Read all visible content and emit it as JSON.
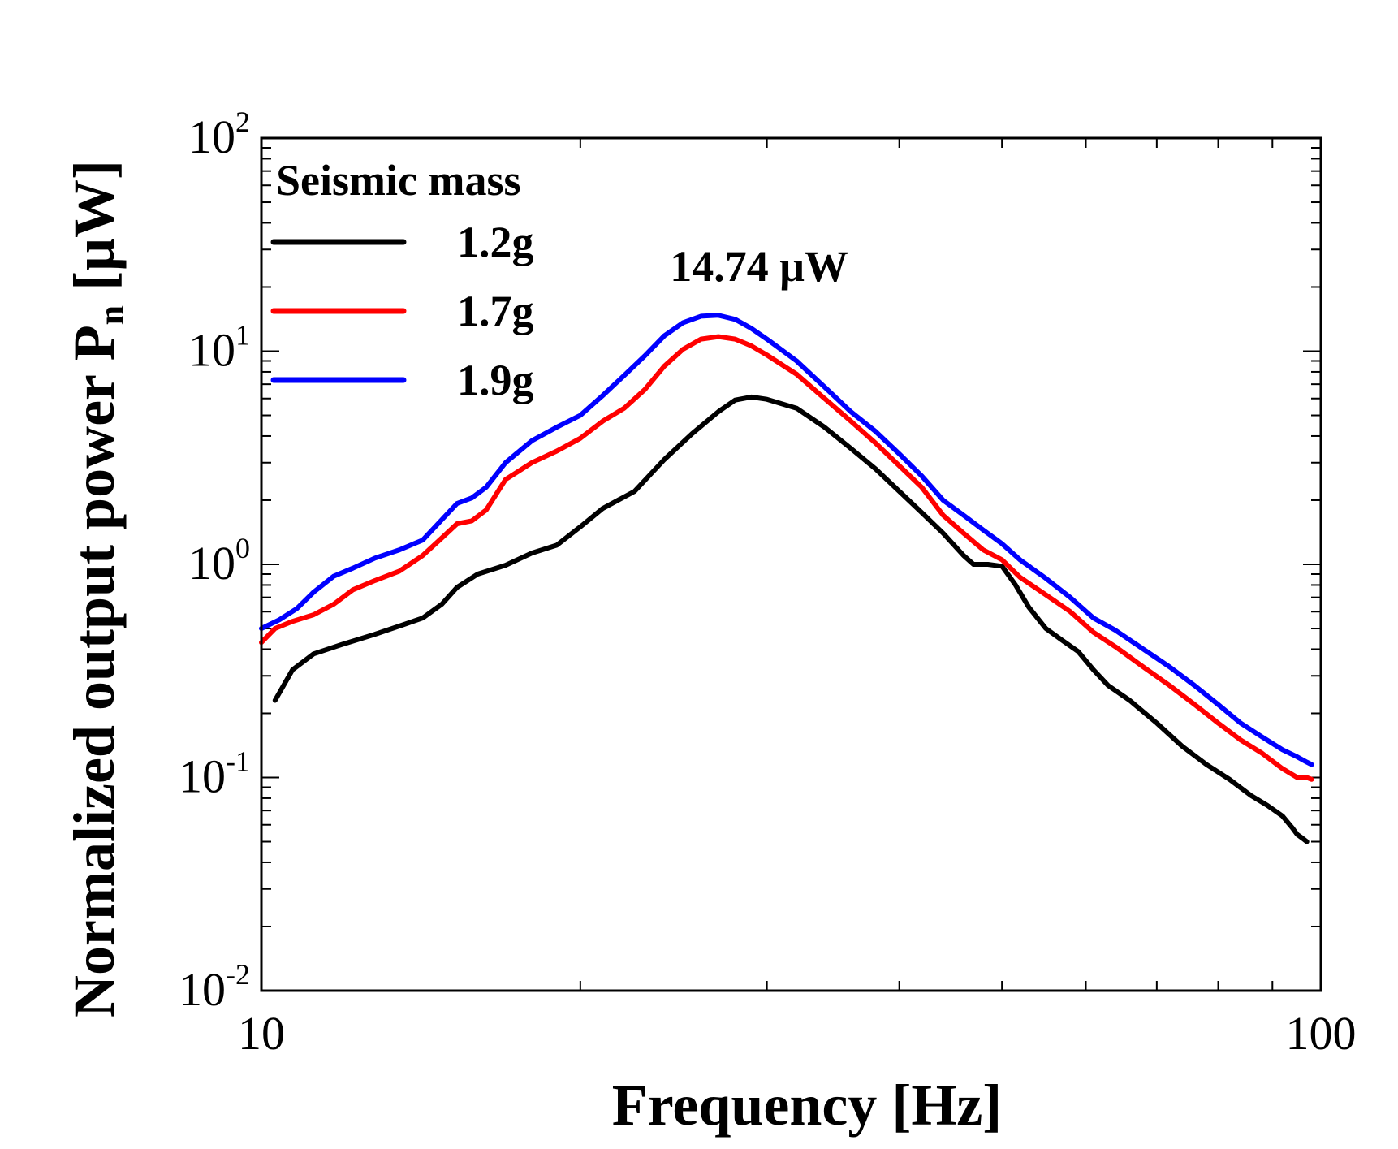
{
  "chart_data": {
    "type": "line",
    "xscale": "log",
    "yscale": "log",
    "xlim": [
      10,
      100
    ],
    "ylim": [
      0.01,
      100
    ],
    "xlabel": "Frequency [Hz]",
    "ylabel_main": "Normalized output power P",
    "ylabel_sub": "n",
    "ylabel_unit": " [μW]",
    "x_ticks": [
      {
        "value": 10,
        "label": "10"
      },
      {
        "value": 100,
        "label": "100"
      }
    ],
    "y_ticks": [
      {
        "value": 0.01,
        "base": "10",
        "exp": "-2"
      },
      {
        "value": 0.1,
        "base": "10",
        "exp": "-1"
      },
      {
        "value": 1,
        "base": "10",
        "exp": "0"
      },
      {
        "value": 10,
        "base": "10",
        "exp": "1"
      },
      {
        "value": 100,
        "base": "10",
        "exp": "2"
      }
    ],
    "legend": {
      "title": "Seismic mass",
      "placement": "top-left"
    },
    "annotation": {
      "text": "14.74 μW",
      "x": 29.5,
      "y": 25
    },
    "series": [
      {
        "name": "1.2g",
        "color": "#000000",
        "x": [
          10.3,
          10.7,
          11.2,
          11.9,
          12.8,
          13.6,
          14.2,
          14.8,
          15.3,
          16.0,
          17.0,
          18.0,
          19.0,
          20.0,
          21.0,
          22.5,
          24.0,
          25.5,
          27.0,
          28.0,
          29.0,
          30.0,
          32.0,
          34.0,
          36.0,
          38.0,
          40.0,
          42.0,
          44.0,
          46.0,
          47.0,
          48.5,
          50.0,
          51.5,
          53.0,
          55.0,
          57.0,
          59.0,
          61.0,
          63.0,
          66.0,
          70.0,
          74.0,
          78.0,
          82.0,
          86.0,
          89.0,
          92.0,
          94.0,
          95.0,
          96.0,
          97.0
        ],
        "y": [
          0.23,
          0.32,
          0.38,
          0.42,
          0.47,
          0.52,
          0.56,
          0.65,
          0.78,
          0.9,
          0.99,
          1.13,
          1.23,
          1.5,
          1.83,
          2.2,
          3.1,
          4.1,
          5.2,
          5.9,
          6.1,
          5.95,
          5.4,
          4.4,
          3.5,
          2.8,
          2.2,
          1.75,
          1.4,
          1.1,
          1.0,
          1.0,
          0.98,
          0.8,
          0.63,
          0.5,
          0.44,
          0.39,
          0.32,
          0.27,
          0.23,
          0.18,
          0.14,
          0.115,
          0.098,
          0.082,
          0.074,
          0.066,
          0.058,
          0.054,
          0.052,
          0.05
        ]
      },
      {
        "name": "1.7g",
        "color": "#ff0000",
        "x": [
          10.0,
          10.3,
          10.7,
          11.2,
          11.7,
          12.2,
          12.8,
          13.5,
          14.2,
          14.8,
          15.3,
          15.8,
          16.3,
          17.0,
          18.0,
          19.0,
          20.0,
          21.0,
          22.0,
          23.0,
          24.0,
          25.0,
          26.0,
          27.0,
          28.0,
          29.0,
          30.0,
          32.0,
          34.0,
          36.0,
          38.0,
          40.0,
          42.0,
          44.0,
          46.0,
          48.0,
          50.0,
          52.0,
          55.0,
          58.0,
          61.0,
          64.0,
          68.0,
          72.0,
          76.0,
          80.0,
          84.0,
          88.0,
          92.0,
          95.0,
          97.0,
          98.0
        ],
        "y": [
          0.43,
          0.5,
          0.54,
          0.58,
          0.65,
          0.76,
          0.84,
          0.93,
          1.1,
          1.33,
          1.55,
          1.6,
          1.8,
          2.5,
          3.0,
          3.4,
          3.9,
          4.7,
          5.4,
          6.6,
          8.5,
          10.2,
          11.4,
          11.7,
          11.4,
          10.6,
          9.6,
          7.8,
          6.0,
          4.7,
          3.7,
          2.9,
          2.3,
          1.7,
          1.4,
          1.17,
          1.05,
          0.87,
          0.72,
          0.6,
          0.48,
          0.41,
          0.33,
          0.27,
          0.22,
          0.18,
          0.15,
          0.13,
          0.11,
          0.1,
          0.1,
          0.098
        ]
      },
      {
        "name": "1.9g",
        "color": "#0000ff",
        "x": [
          10.0,
          10.4,
          10.8,
          11.2,
          11.7,
          12.2,
          12.8,
          13.5,
          14.2,
          14.8,
          15.3,
          15.8,
          16.3,
          17.0,
          18.0,
          19.0,
          20.0,
          21.0,
          22.0,
          23.0,
          24.0,
          25.0,
          26.0,
          27.0,
          28.0,
          29.0,
          30.0,
          32.0,
          34.0,
          36.0,
          38.0,
          40.0,
          42.0,
          44.0,
          46.0,
          48.0,
          50.0,
          52.0,
          55.0,
          58.0,
          61.0,
          64.0,
          68.0,
          72.0,
          76.0,
          80.0,
          84.0,
          88.0,
          92.0,
          95.0,
          97.0,
          98.0
        ],
        "y": [
          0.5,
          0.55,
          0.62,
          0.74,
          0.88,
          0.96,
          1.07,
          1.17,
          1.3,
          1.62,
          1.93,
          2.05,
          2.3,
          3.0,
          3.8,
          4.4,
          5.0,
          6.2,
          7.7,
          9.5,
          11.8,
          13.6,
          14.6,
          14.74,
          14.1,
          12.8,
          11.4,
          9.0,
          6.8,
          5.2,
          4.2,
          3.3,
          2.6,
          2.0,
          1.7,
          1.45,
          1.25,
          1.05,
          0.86,
          0.7,
          0.56,
          0.49,
          0.4,
          0.33,
          0.27,
          0.22,
          0.18,
          0.155,
          0.135,
          0.125,
          0.118,
          0.115
        ]
      }
    ]
  }
}
